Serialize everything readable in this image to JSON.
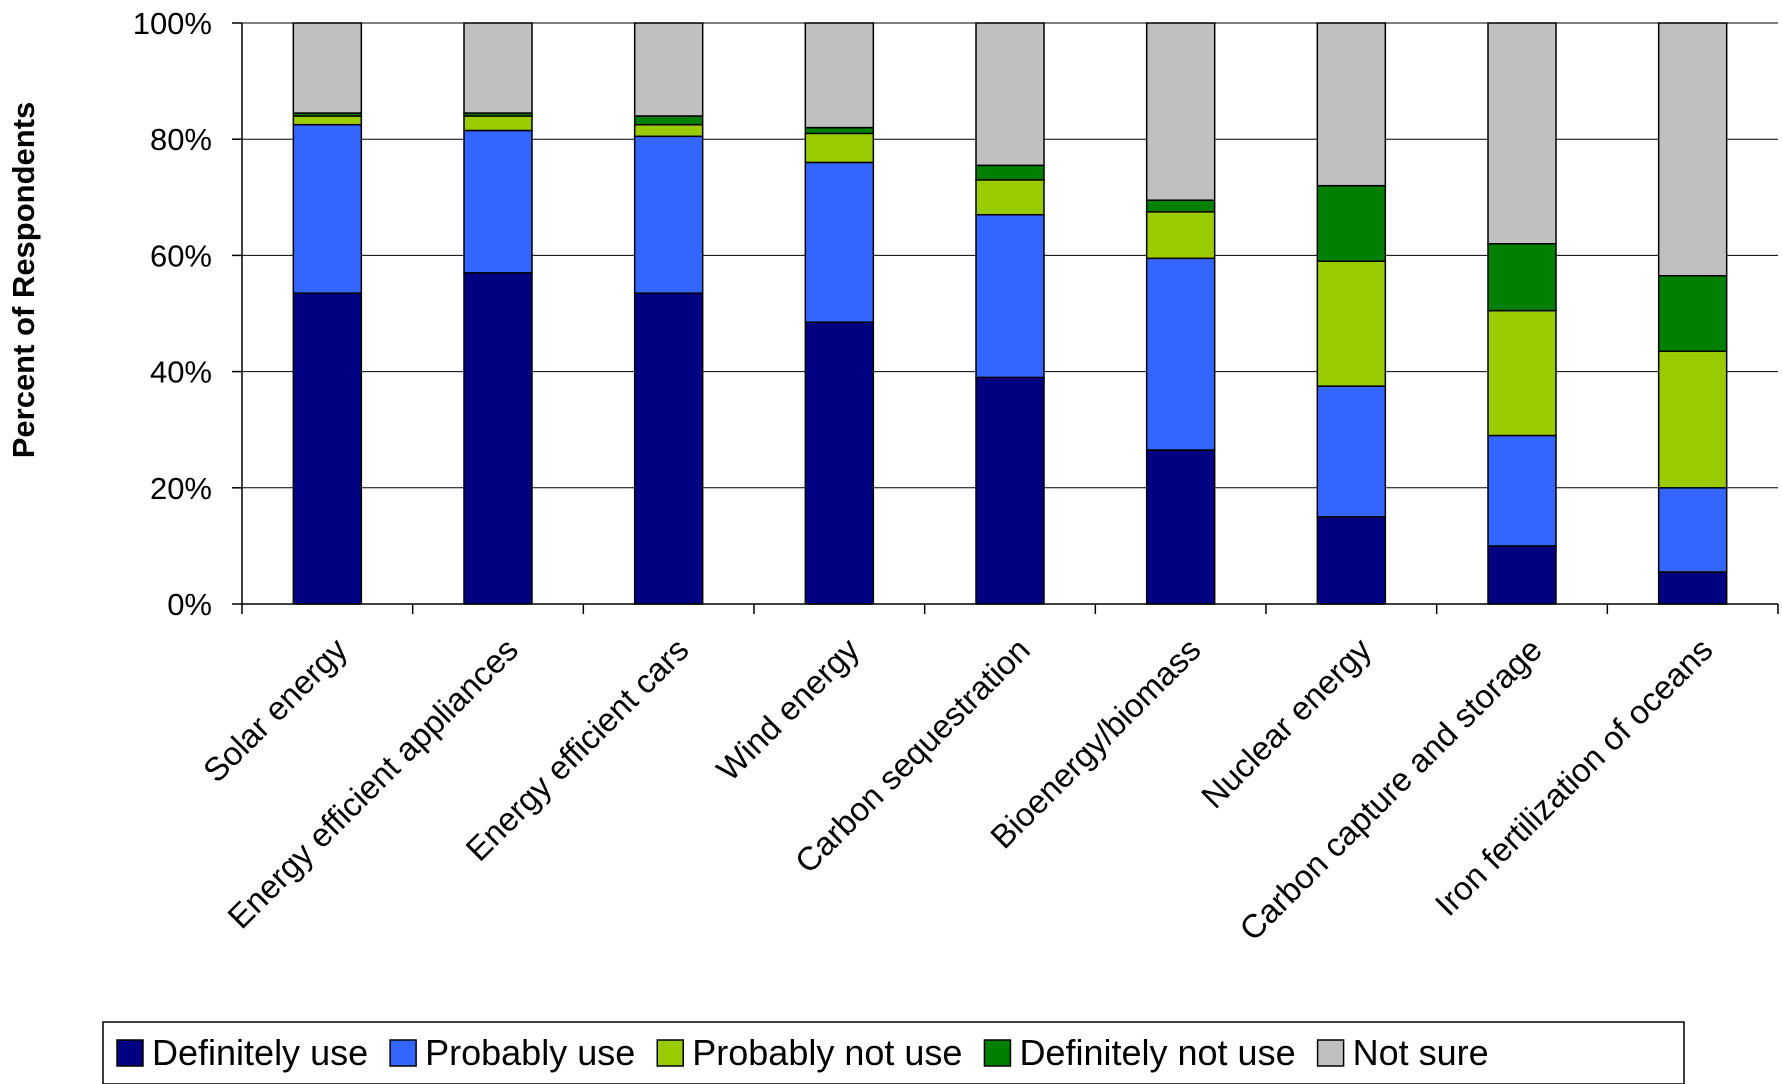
{
  "chart_data": {
    "type": "bar",
    "stacked": "percent",
    "ylabel": "Percent of Respondents",
    "xlabel": "",
    "ylim": [
      0,
      100
    ],
    "yticks": [
      "0%",
      "20%",
      "40%",
      "60%",
      "80%",
      "100%"
    ],
    "grid": "horizontal",
    "legend_position": "bottom",
    "categories": [
      "Solar energy",
      "Energy efficient appliances",
      "Energy efficient cars",
      "Wind energy",
      "Carbon sequestration",
      "Bioenergy/biomass",
      "Nuclear energy",
      "Carbon capture and storage",
      "Iron fertilization of oceans"
    ],
    "series": [
      {
        "name": "Definitely use",
        "color": "#000080",
        "values": [
          53.5,
          57,
          53.5,
          48.5,
          39,
          26.5,
          15,
          10,
          5.5
        ]
      },
      {
        "name": "Probably use",
        "color": "#3366FF",
        "values": [
          29,
          24.5,
          27,
          27.5,
          28,
          33,
          22.5,
          19,
          14.5
        ]
      },
      {
        "name": "Probably not use",
        "color": "#99CC00",
        "values": [
          1.5,
          2.5,
          2,
          5,
          6,
          8,
          21.5,
          21.5,
          23.5
        ]
      },
      {
        "name": "Definitely not use",
        "color": "#008000",
        "values": [
          0.5,
          0.5,
          1.5,
          1,
          2.5,
          2,
          13,
          11.5,
          13
        ]
      },
      {
        "name": "Not sure",
        "color": "#C0C0C0",
        "values": [
          15.5,
          15.5,
          16,
          18,
          24.5,
          30.5,
          28,
          38,
          43.5
        ]
      }
    ]
  }
}
